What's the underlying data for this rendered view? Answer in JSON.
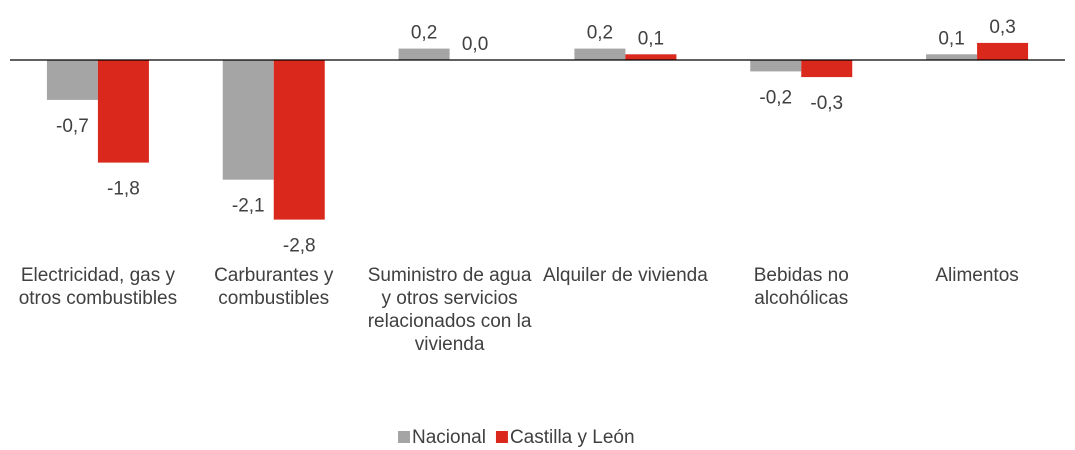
{
  "chart_data": {
    "type": "bar",
    "categories": [
      "Electricidad, gas y otros combustibles",
      "Carburantes y combustibles",
      "Suministro de agua y otros servicios relacionados con la vivienda",
      "Alquiler de vivienda",
      "Bebidas no alcohólicas",
      "Alimentos"
    ],
    "series": [
      {
        "name": "Nacional",
        "color": "#a5a5a5",
        "values": [
          -0.7,
          -2.1,
          0.2,
          0.2,
          -0.2,
          0.1
        ],
        "value_labels": [
          "-0,7",
          "-2,1",
          "0,2",
          "0,2",
          "-0,2",
          "0,1"
        ]
      },
      {
        "name": "Castilla y León",
        "color": "#da291c",
        "values": [
          -1.8,
          -2.8,
          0.0,
          0.1,
          -0.3,
          0.3
        ],
        "value_labels": [
          "-1,8",
          "-2,8",
          "0,0",
          "0,1",
          "-0,3",
          "0,3"
        ]
      }
    ],
    "legend": "bottom"
  }
}
